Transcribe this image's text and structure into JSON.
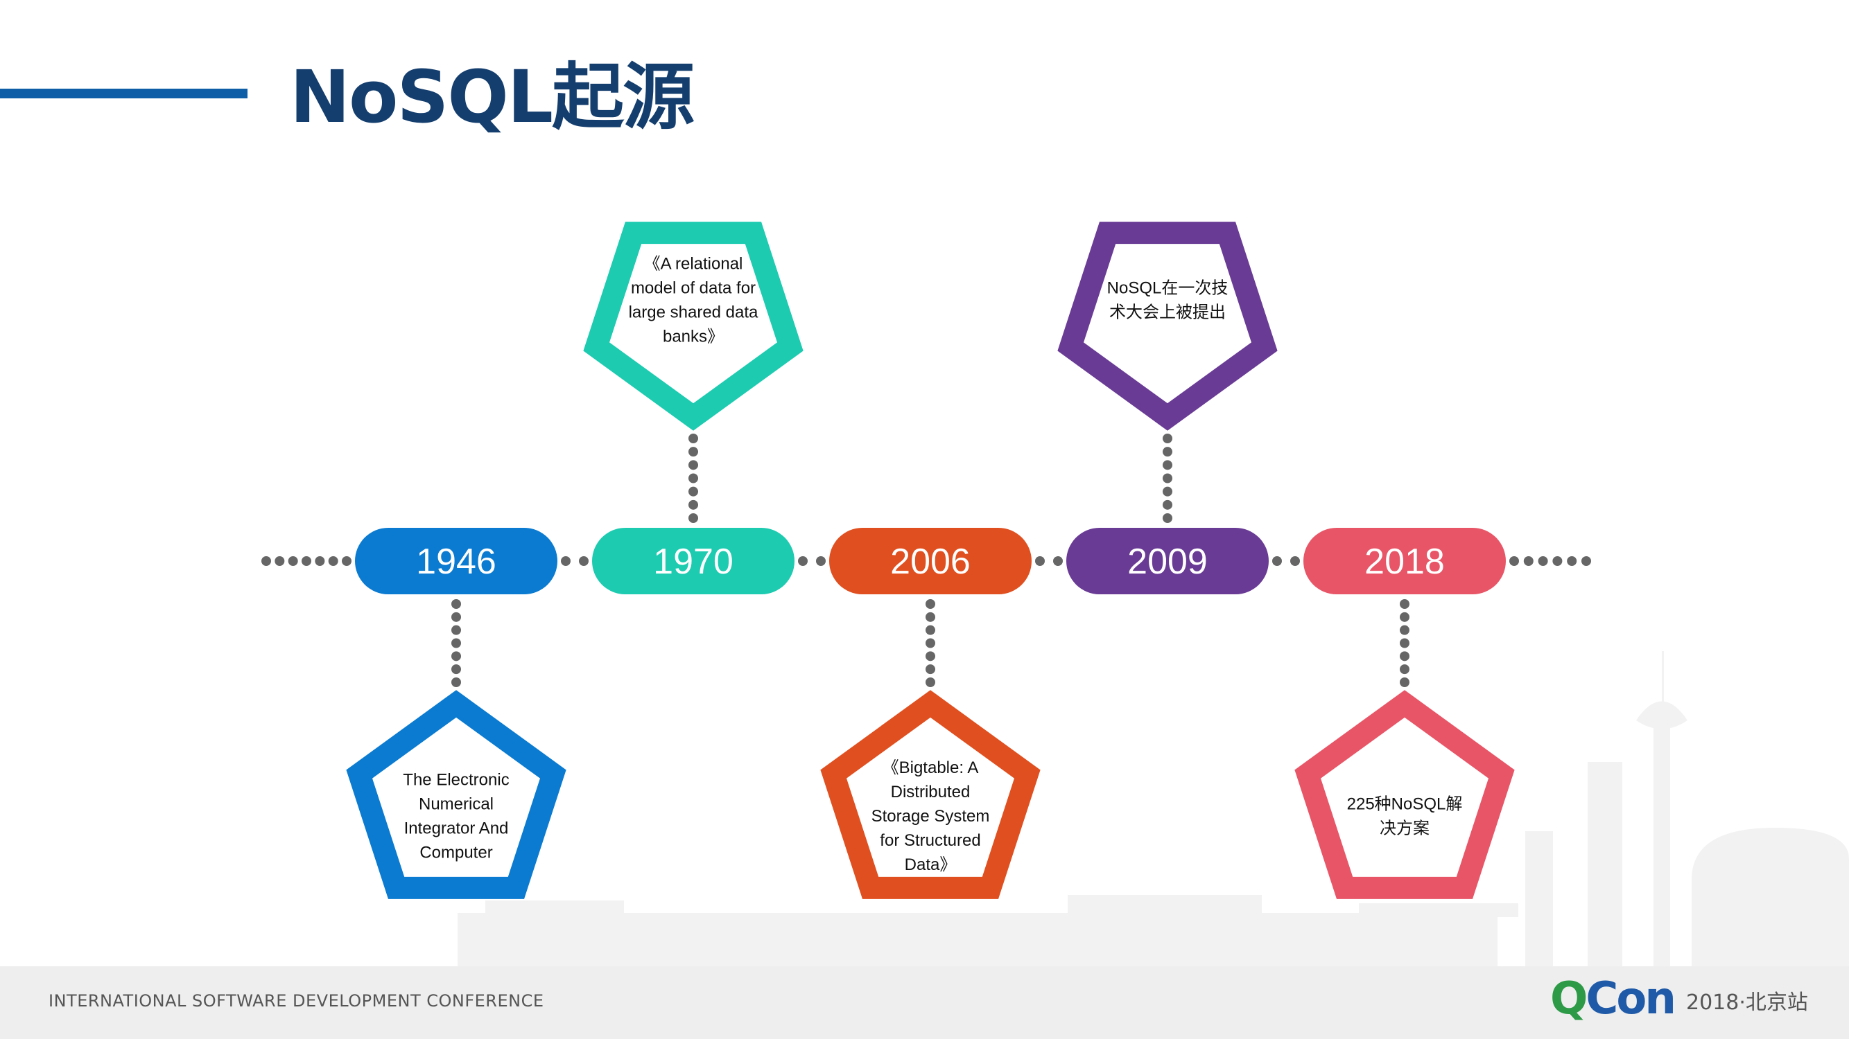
{
  "slide": {
    "title": "NoSQL起源",
    "footer_text": "INTERNATIONAL SOFTWARE DEVELOPMENT CONFERENCE",
    "logo_q": "Q",
    "logo_con": "Con",
    "logo_sub": "2018·北京站"
  },
  "colors": {
    "title": "#143e6e",
    "accent_bar": "#0d5ea6",
    "dots": "#666666"
  },
  "timeline": [
    {
      "year": "1946",
      "color": "#0a7bd1",
      "position": "below",
      "lines": [
        "The Electronic",
        "Numerical",
        "Integrator And",
        "Computer"
      ]
    },
    {
      "year": "1970",
      "color": "#1ccbb0",
      "position": "above",
      "lines": [
        "《A relational",
        "model of data for",
        "large shared data",
        "banks》"
      ]
    },
    {
      "year": "2006",
      "color": "#e04f1f",
      "position": "below",
      "lines": [
        "《Bigtable: A",
        "Distributed",
        "Storage System",
        "for Structured",
        "Data》"
      ]
    },
    {
      "year": "2009",
      "color": "#693b95",
      "position": "above",
      "lines": [
        "NoSQL在一次技",
        "术大会上被提出"
      ]
    },
    {
      "year": "2018",
      "color": "#e85567",
      "position": "below",
      "lines": [
        "225种NoSQL解",
        "决方案"
      ]
    }
  ]
}
